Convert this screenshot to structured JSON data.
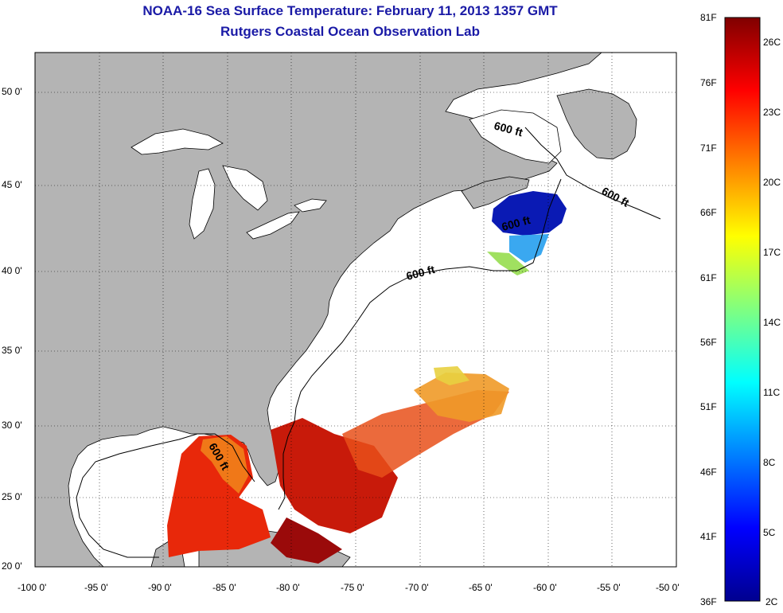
{
  "title": "NOAA-16 Sea Surface Temperature:  February 11, 2013 1357 GMT",
  "subtitle": "Rutgers Coastal Ocean Observation Lab",
  "map": {
    "lon_range": [
      -100,
      -50
    ],
    "lat_range": [
      20,
      52.5
    ],
    "lon_ticks": [
      "-100 0'",
      "-95 0'",
      "-90 0'",
      "-85 0'",
      "-80 0'",
      "-75 0'",
      "-70 0'",
      "-65 0'",
      "-60 0'",
      "-55 0'",
      "-50 0'"
    ],
    "lat_ticks": [
      "50 0'",
      "45 0'",
      "40 0'",
      "35 0'",
      "30 0'",
      "25 0'",
      "20 0'"
    ],
    "grid": "dotted",
    "land_color": "#b4b4b4",
    "ocean_color": "#ffffff",
    "contour_labels": [
      "600 ft",
      "600 ft",
      "600 ft",
      "600 ft",
      "600 ft"
    ]
  },
  "colorbar": {
    "range_f": [
      36,
      81
    ],
    "range_c": [
      2,
      27
    ],
    "f_labels": [
      "81F",
      "76F",
      "71F",
      "66F",
      "61F",
      "56F",
      "51F",
      "46F",
      "41F",
      "36F"
    ],
    "c_labels": [
      "26C",
      "23C",
      "20C",
      "17C",
      "14C",
      "11C",
      "8C",
      "5C",
      "2C"
    ],
    "colors": [
      "#00008f",
      "#0000ff",
      "#0080ff",
      "#00ffff",
      "#80ff80",
      "#ffff00",
      "#ff8000",
      "#ff0000",
      "#800000"
    ]
  }
}
